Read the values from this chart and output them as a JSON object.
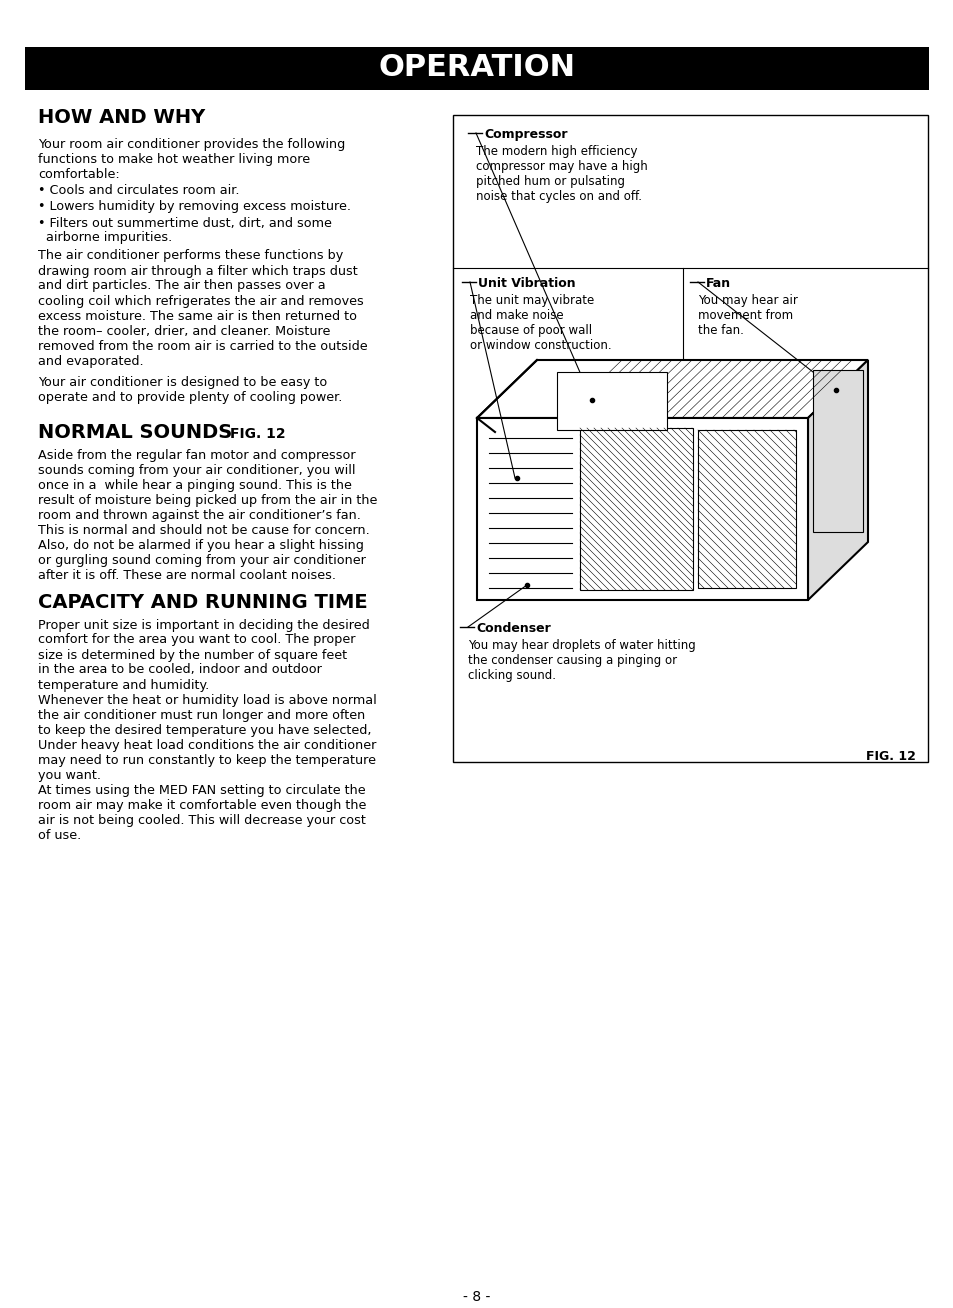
{
  "bg_color": "#ffffff",
  "header_bg": "#000000",
  "header_text": "OPERATION",
  "header_text_color": "#ffffff",
  "header_font_size": 22,
  "section1_title": "HOW AND WHY",
  "section1_body_p1": "Your room air conditioner provides the following\nfunctions to make hot weather living more\ncomfortable:",
  "section1_bullets": [
    "• Cools and circulates room air.",
    "• Lowers humidity by removing excess moisture.",
    "• Filters out summertime dust, dirt, and some\n  airborne impurities."
  ],
  "section1_body_p2": "The air conditioner performs these functions by\ndrawing room air through a filter which traps dust\nand dirt particles. The air then passes over a\ncooling coil which refrigerates the air and removes\nexcess moisture. The same air is then returned to\nthe room– cooler, drier, and cleaner. Moisture\nremoved from the room air is carried to the outside\nand evaporated.",
  "section1_body_p3": "Your air conditioner is designed to be easy to\noperate and to provide plenty of cooling power.",
  "section2_title": "NORMAL SOUNDS",
  "section2_fig": "FIG. 12",
  "section2_body": "Aside from the regular fan motor and compressor\nsounds coming from your air conditioner, you will\nonce in a  while hear a pinging sound. This is the\nresult of moisture being picked up from the air in the\nroom and thrown against the air conditioner’s fan.\nThis is normal and should not be cause for concern.\nAlso, do not be alarmed if you hear a slight hissing\nor gurgling sound coming from your air conditioner\nafter it is off. These are normal coolant noises.",
  "section3_title": "CAPACITY AND RUNNING TIME",
  "section3_body_p1": "Proper unit size is important in deciding the desired\ncomfort for the area you want to cool. The proper\nsize is determined by the number of square feet\nin the area to be cooled, indoor and outdoor\ntemperature and humidity.",
  "section3_body_p2": "Whenever the heat or humidity load is above normal\nthe air conditioner must run longer and more often\nto keep the desired temperature you have selected,\nUnder heavy heat load conditions the air conditioner\nmay need to run constantly to keep the temperature\nyou want.\nAt times using the MED FAN setting to circulate the\nroom air may make it comfortable even though the\nair is not being cooled. This will decrease your cost\nof use.",
  "compressor_label": "Compressor",
  "compressor_text": "The modern high efficiency\ncompressor may have a high\npitched hum or pulsating\nnoise that cycles on and off.",
  "unit_vib_label": "Unit Vibration",
  "unit_vib_text": "The unit may vibrate\nand make noise\nbecause of poor wall\nor window construction.",
  "fan_label": "Fan",
  "fan_text": "You may hear air\nmovement from\nthe fan.",
  "condenser_label": "Condenser",
  "condenser_text": "You may hear droplets of water hitting\nthe condenser causing a pinging or\nclicking sound.",
  "fig_label": "FIG. 12",
  "page_number": "- 8 -",
  "text_color": "#000000",
  "body_fontsize": 9.2,
  "title_fontsize": 14,
  "label_fontsize": 9
}
